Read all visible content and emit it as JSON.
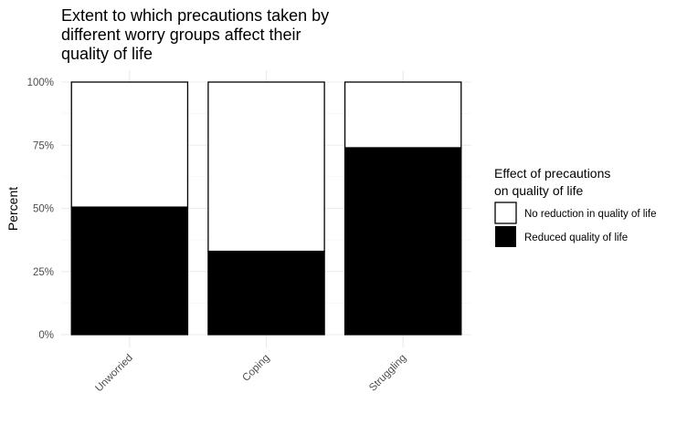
{
  "chart_data": {
    "type": "bar",
    "stacked": true,
    "title_lines": [
      "Extent to which precautions taken by",
      "different worry groups affect their",
      "quality of life"
    ],
    "xlabel": "",
    "ylabel": "Percent",
    "ylim": [
      0,
      1
    ],
    "y_ticks": [
      0,
      0.25,
      0.5,
      0.75,
      1
    ],
    "y_tick_labels": [
      "0%",
      "25%",
      "50%",
      "75%",
      "100%"
    ],
    "categories": [
      "Unworried",
      "Coping",
      "Struggling"
    ],
    "series": [
      {
        "name": "Reduced quality of life",
        "values": [
          0.505,
          0.33,
          0.74
        ],
        "color": "#000000"
      },
      {
        "name": "No reduction in quality of life",
        "values": [
          0.495,
          0.67,
          0.26
        ],
        "color": "#ffffff"
      }
    ],
    "legend": {
      "title_lines": [
        "Effect of precautions",
        "on quality of life"
      ],
      "position": "right",
      "items": [
        {
          "label": "No reduction in quality of life",
          "color": "#ffffff"
        },
        {
          "label": "Reduced quality of life",
          "color": "#000000"
        }
      ]
    },
    "grid": true
  }
}
